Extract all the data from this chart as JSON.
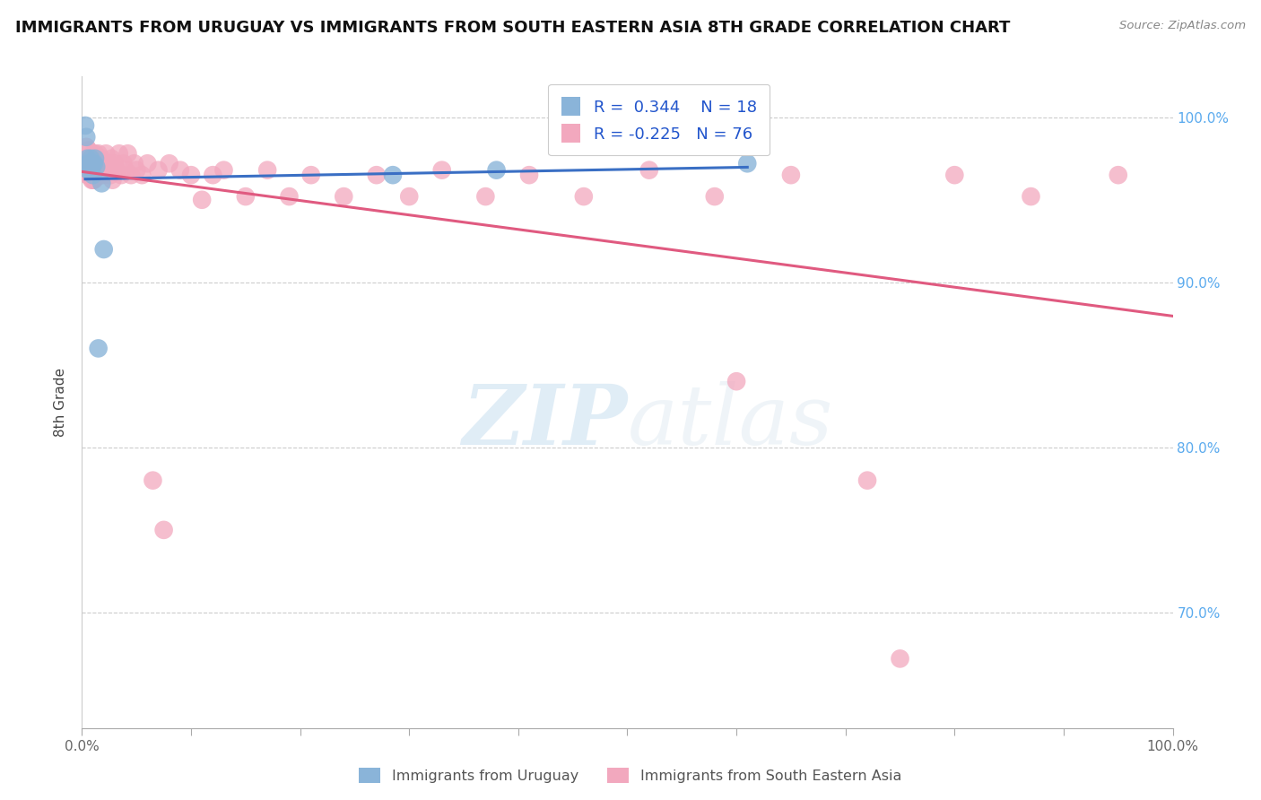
{
  "title": "IMMIGRANTS FROM URUGUAY VS IMMIGRANTS FROM SOUTH EASTERN ASIA 8TH GRADE CORRELATION CHART",
  "source": "Source: ZipAtlas.com",
  "ylabel": "8th Grade",
  "blue_R": "0.344",
  "blue_N": "18",
  "pink_R": "-0.225",
  "pink_N": "76",
  "blue_color": "#8ab4d9",
  "pink_color": "#f2a8be",
  "blue_line_color": "#3a6fc4",
  "pink_line_color": "#e05a80",
  "legend_label_blue": "Immigrants from Uruguay",
  "legend_label_pink": "Immigrants from South Eastern Asia",
  "watermark_zip": "ZIP",
  "watermark_atlas": "atlas",
  "xlim": [
    0.0,
    1.0
  ],
  "ylim": [
    0.63,
    1.025
  ],
  "y_ticks": [
    0.7,
    0.8,
    0.9,
    1.0
  ],
  "y_tick_labels": [
    "70.0%",
    "80.0%",
    "90.0%",
    "100.0%"
  ],
  "blue_scatter_x": [
    0.003,
    0.004,
    0.005,
    0.006,
    0.006,
    0.007,
    0.008,
    0.009,
    0.01,
    0.011,
    0.012,
    0.013,
    0.015,
    0.018,
    0.02,
    0.285,
    0.38,
    0.61
  ],
  "blue_scatter_y": [
    0.995,
    0.988,
    0.975,
    0.972,
    0.968,
    0.972,
    0.975,
    0.97,
    0.965,
    0.972,
    0.975,
    0.97,
    0.86,
    0.96,
    0.92,
    0.965,
    0.968,
    0.972
  ],
  "pink_scatter_x": [
    0.003,
    0.004,
    0.004,
    0.005,
    0.005,
    0.006,
    0.006,
    0.006,
    0.007,
    0.007,
    0.008,
    0.008,
    0.009,
    0.009,
    0.01,
    0.01,
    0.01,
    0.011,
    0.011,
    0.012,
    0.012,
    0.013,
    0.014,
    0.015,
    0.016,
    0.017,
    0.018,
    0.019,
    0.02,
    0.022,
    0.024,
    0.025,
    0.026,
    0.027,
    0.028,
    0.03,
    0.032,
    0.034,
    0.036,
    0.038,
    0.04,
    0.042,
    0.045,
    0.048,
    0.05,
    0.055,
    0.06,
    0.065,
    0.07,
    0.075,
    0.08,
    0.09,
    0.1,
    0.11,
    0.12,
    0.13,
    0.15,
    0.17,
    0.19,
    0.21,
    0.24,
    0.27,
    0.3,
    0.33,
    0.37,
    0.41,
    0.46,
    0.52,
    0.58,
    0.65,
    0.72,
    0.8,
    0.87,
    0.95,
    0.6,
    0.75
  ],
  "pink_scatter_y": [
    0.975,
    0.982,
    0.968,
    0.975,
    0.965,
    0.98,
    0.972,
    0.965,
    0.975,
    0.965,
    0.975,
    0.965,
    0.972,
    0.962,
    0.978,
    0.97,
    0.962,
    0.975,
    0.962,
    0.978,
    0.965,
    0.972,
    0.968,
    0.978,
    0.972,
    0.965,
    0.975,
    0.965,
    0.972,
    0.978,
    0.968,
    0.972,
    0.965,
    0.975,
    0.962,
    0.972,
    0.968,
    0.978,
    0.965,
    0.972,
    0.968,
    0.978,
    0.965,
    0.972,
    0.968,
    0.965,
    0.972,
    0.78,
    0.968,
    0.75,
    0.972,
    0.968,
    0.965,
    0.95,
    0.965,
    0.968,
    0.952,
    0.968,
    0.952,
    0.965,
    0.952,
    0.965,
    0.952,
    0.968,
    0.952,
    0.965,
    0.952,
    0.968,
    0.952,
    0.965,
    0.78,
    0.965,
    0.952,
    0.965,
    0.84,
    0.672
  ]
}
